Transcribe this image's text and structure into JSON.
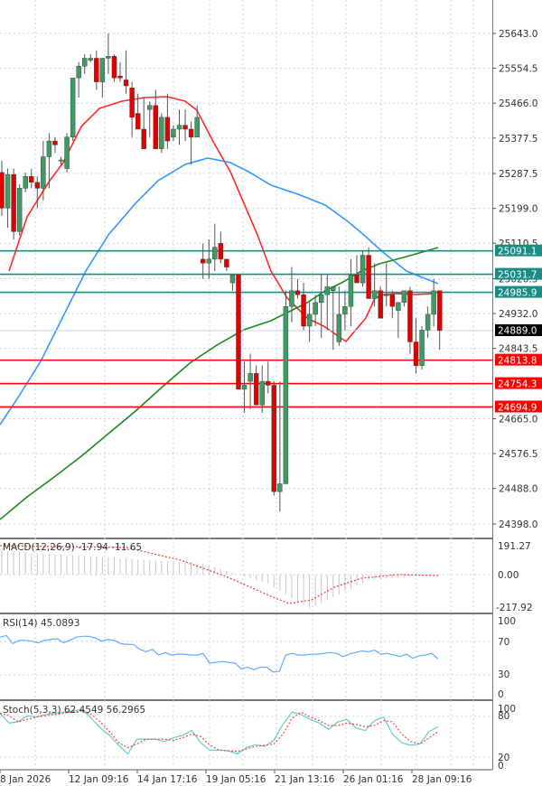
{
  "chart_data": {
    "type": "candlestick",
    "title": "",
    "main_panel": {
      "price_axis_ticks": [
        25643.0,
        25554.5,
        25466.0,
        25377.5,
        25287.5,
        25199.0,
        25110.5,
        25020.5,
        24932.0,
        24843.5,
        24665.0,
        24576.5,
        24488.0,
        24398.0
      ],
      "ylim": [
        24360,
        25730
      ],
      "current_price": 24889.0,
      "horizontal_levels": [
        {
          "value": 25091.1,
          "color": "#1a8c84",
          "kind": "resistance"
        },
        {
          "value": 25031.7,
          "color": "#1a8c84",
          "kind": "resistance"
        },
        {
          "value": 24985.9,
          "color": "#1a8c84",
          "kind": "resistance"
        },
        {
          "value": 24813.8,
          "color": "#ff0000",
          "kind": "support"
        },
        {
          "value": 24754.3,
          "color": "#ff0000",
          "kind": "support"
        },
        {
          "value": 24694.9,
          "color": "#ff0000",
          "kind": "support"
        }
      ],
      "moving_averages": [
        {
          "name": "MA fast",
          "color": "#ff2a2a"
        },
        {
          "name": "MA medium",
          "color": "#3399ff"
        },
        {
          "name": "MA slow",
          "color": "#1e8a1e"
        }
      ],
      "candles": [
        [
          25290,
          25320,
          25180,
          25200
        ],
        [
          25200,
          25300,
          25150,
          25285
        ],
        [
          25285,
          25300,
          25120,
          25140
        ],
        [
          25140,
          25260,
          25130,
          25250
        ],
        [
          25250,
          25290,
          25240,
          25280
        ],
        [
          25280,
          25300,
          25250,
          25265
        ],
        [
          25265,
          25280,
          25200,
          25250
        ],
        [
          25250,
          25370,
          25220,
          25330
        ],
        [
          25330,
          25390,
          25250,
          25370
        ],
        [
          25370,
          25380,
          25340,
          25360
        ],
        [
          25320,
          25330,
          25310,
          25322
        ],
        [
          25300,
          25390,
          25290,
          25380
        ],
        [
          25380,
          25500,
          25370,
          25530
        ],
        [
          25530,
          25570,
          25480,
          25560
        ],
        [
          25560,
          25590,
          25540,
          25580
        ],
        [
          25575,
          25590,
          25570,
          25580
        ],
        [
          25580,
          25600,
          25500,
          25520
        ],
        [
          25520,
          25580,
          25480,
          25580
        ],
        [
          25580,
          25643,
          25540,
          25585
        ],
        [
          25585,
          25590,
          25520,
          25530
        ],
        [
          25535,
          25570,
          25520,
          25530
        ],
        [
          25525,
          25600,
          25490,
          25510
        ],
        [
          25505,
          25520,
          25380,
          25430
        ],
        [
          25440,
          25490,
          25400,
          25400
        ],
        [
          25400,
          25480,
          25360,
          25350
        ],
        [
          25450,
          25470,
          25380,
          25460
        ],
        [
          25460,
          25500,
          25400,
          25350
        ],
        [
          25350,
          25440,
          25340,
          25430
        ],
        [
          25430,
          25490,
          25350,
          25370
        ],
        [
          25380,
          25410,
          25370,
          25400
        ],
        [
          25400,
          25450,
          25360,
          25410
        ],
        [
          25410,
          25450,
          25370,
          25400
        ],
        [
          25400,
          25420,
          25310,
          25380
        ],
        [
          25380,
          25460,
          25380,
          25430
        ],
        [
          25070,
          25110,
          25020,
          25060
        ],
        [
          25060,
          25120,
          25020,
          25070
        ],
        [
          25070,
          25160,
          25040,
          25100
        ],
        [
          25110,
          25140,
          25060,
          25070
        ],
        [
          25070,
          25070,
          25040,
          25050
        ],
        [
          25010,
          25030,
          24990,
          25030
        ],
        [
          25030,
          25030,
          24750,
          24740
        ],
        [
          24740,
          24810,
          24680,
          24750
        ],
        [
          24760,
          24830,
          24690,
          24780
        ],
        [
          24780,
          24800,
          24710,
          24700
        ],
        [
          24700,
          24800,
          24680,
          24760
        ],
        [
          24760,
          24810,
          24730,
          24750
        ],
        [
          24750,
          24760,
          24470,
          24480
        ],
        [
          24480,
          24760,
          24430,
          24500
        ],
        [
          24500,
          24990,
          24500,
          24950
        ],
        [
          24950,
          25050,
          24910,
          24990
        ],
        [
          24990,
          25020,
          24970,
          24980
        ],
        [
          24980,
          25010,
          24890,
          24900
        ],
        [
          24900,
          24960,
          24860,
          24930
        ],
        [
          24930,
          24980,
          24900,
          24960
        ],
        [
          24960,
          25030,
          24870,
          24980
        ],
        [
          24980,
          25030,
          24890,
          25000
        ],
        [
          24990,
          24990,
          24840,
          25000
        ],
        [
          24860,
          25000,
          24850,
          24930
        ],
        [
          24930,
          24990,
          24890,
          24950
        ],
        [
          24950,
          25070,
          24900,
          25030
        ],
        [
          25030,
          25080,
          25010,
          25010
        ],
        [
          25010,
          25090,
          25000,
          25080
        ],
        [
          25080,
          25100,
          24970,
          24970
        ],
        [
          24970,
          25060,
          24950,
          24990
        ],
        [
          24990,
          25000,
          24920,
          24920
        ],
        [
          24980,
          25060,
          24950,
          24980
        ],
        [
          24980,
          24990,
          24920,
          24950
        ],
        [
          24940,
          24960,
          24870,
          24960
        ],
        [
          24960,
          24990,
          24950,
          24990
        ],
        [
          24990,
          25000,
          24830,
          24860
        ],
        [
          24860,
          24920,
          24780,
          24800
        ],
        [
          24800,
          24900,
          24790,
          24890
        ],
        [
          24890,
          24950,
          24870,
          24930
        ],
        [
          24930,
          25020,
          24900,
          24990
        ],
        [
          24990,
          24990,
          24840,
          24889
        ]
      ]
    },
    "indicators": [
      {
        "name": "MACD(12,26,9)",
        "values": [
          -17.94,
          -11.65
        ],
        "axis_ticks": [
          191.27,
          0.0,
          -217.92
        ],
        "histogram_color": "#c0c0c0",
        "signal_color": "#ff4444"
      },
      {
        "name": "RSI(14)",
        "values": [
          45.0893
        ],
        "axis_ticks": [
          100,
          70,
          30,
          0
        ],
        "line_color": "#66aaff",
        "series": [
          72,
          74,
          64,
          68,
          68,
          67,
          65,
          68,
          69,
          70,
          65,
          68,
          72,
          73,
          73,
          71,
          67,
          69,
          68,
          64,
          63,
          63,
          57,
          54,
          57,
          50,
          53,
          50,
          51,
          51,
          50,
          50,
          52,
          40,
          41,
          42,
          41,
          40,
          33,
          35,
          32,
          35,
          35,
          29,
          30,
          50,
          52,
          50,
          50,
          51,
          51,
          52,
          53,
          52,
          48,
          51,
          53,
          55,
          54,
          56,
          51,
          52,
          50,
          48,
          51,
          46,
          49,
          50,
          52,
          45
        ]
      },
      {
        "name": "Stoch(5,3,3)",
        "values": [
          62.4549,
          56.2965
        ],
        "axis_ticks": [
          100,
          80,
          20,
          0
        ],
        "k_color": "#66cccc",
        "d_color": "#ff4444",
        "k_series": [
          86,
          70,
          72,
          82,
          80,
          84,
          86,
          88,
          90,
          92,
          78,
          62,
          50,
          34,
          20,
          44,
          44,
          44,
          40,
          46,
          50,
          58,
          38,
          26,
          26,
          25,
          20,
          30,
          35,
          32,
          42,
          68,
          88,
          84,
          76,
          70,
          60,
          72,
          76,
          62,
          58,
          74,
          80,
          52,
          38,
          34,
          36,
          56,
          64
        ],
        "d_series": [
          86,
          82,
          72,
          76,
          80,
          82,
          84,
          86,
          88,
          90,
          84,
          72,
          56,
          38,
          30,
          36,
          44,
          44,
          44,
          42,
          46,
          52,
          48,
          34,
          26,
          25,
          24,
          28,
          32,
          34,
          36,
          52,
          78,
          88,
          80,
          74,
          66,
          66,
          70,
          68,
          64,
          66,
          74,
          72,
          52,
          40,
          36,
          46,
          56
        ]
      }
    ],
    "x_tick_labels": [
      "8 Jan 2026",
      "12 Jan 09:16",
      "14 Jan 17:16",
      "19 Jan 05:16",
      "21 Jan 13:16",
      "26 Jan 01:16",
      "28 Jan 09:16"
    ],
    "grid": true
  },
  "main_axis": {
    "labels": [
      "25643.0",
      "25554.5",
      "25466.0",
      "25377.5",
      "25287.5",
      "25199.0",
      "25110.5",
      "25020.5",
      "24932.0",
      "24843.5",
      "24665.0",
      "24576.5",
      "24488.0",
      "24398.0"
    ],
    "current_price_tag": "24889.0",
    "level_tags": [
      "25091.1",
      "25031.7",
      "24985.9",
      "24813.8",
      "24754.3",
      "24694.9"
    ]
  },
  "macd": {
    "title": "MACD(12,26,9) -17.94 -11.65",
    "axis": [
      "191.27",
      "0.00",
      "-217.92"
    ]
  },
  "rsi": {
    "title": "RSI(14) 45.0893",
    "axis": [
      "100",
      "70",
      "30",
      "0"
    ]
  },
  "stoch": {
    "title": "Stoch(5,3,3) 62.4549 56.2965",
    "axis": [
      "100",
      "80",
      "20",
      "0"
    ]
  },
  "time_axis": {
    "labels": [
      "8 Jan 2026",
      "12 Jan 09:16",
      "14 Jan 17:16",
      "19 Jan 05:16",
      "21 Jan 13:16",
      "26 Jan 01:16",
      "28 Jan 09:16"
    ]
  }
}
